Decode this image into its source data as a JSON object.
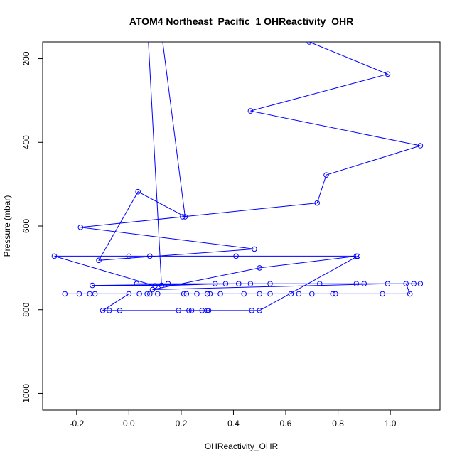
{
  "chart_data": {
    "type": "line",
    "title": "ATOM4 Northeast_Pacific_1 OHReactivity_OHR",
    "xlabel": "OHReactivity_OHR",
    "ylabel": "Pressure (mbar)",
    "xlim": [
      -0.33,
      1.19
    ],
    "ylim": [
      1040,
      160
    ],
    "y_reversed": true,
    "grid": false,
    "x_ticks": [
      -0.2,
      0.0,
      0.2,
      0.4,
      0.6,
      0.8,
      1.0
    ],
    "x_tick_labels": [
      "-0.2",
      "0.0",
      "0.2",
      "0.4",
      "0.6",
      "0.8",
      "1.0"
    ],
    "y_ticks": [
      200,
      400,
      600,
      800,
      1000
    ],
    "y_tick_labels": [
      "200",
      "400",
      "600",
      "800",
      "1000"
    ],
    "colors": {
      "series": "#0000ff"
    },
    "series": [
      {
        "x": [
          0.69,
          0.99,
          0.465,
          1.115,
          0.755,
          0.72,
          0.205,
          -0.185,
          0.48,
          -0.115,
          0.035,
          0.215,
          0.035,
          0.125,
          -0.14,
          0.465,
          1.115,
          0.87,
          0.37,
          0.1,
          -0.285,
          0.41,
          0.08,
          0.0,
          0.87,
          0.5,
          0.09,
          0.99,
          0.73,
          0.42,
          0.03,
          1.09,
          0.9,
          0.54,
          0.33,
          0.42,
          0.15,
          1.06,
          1.075,
          0.62,
          0.5,
          0.22,
          0.07,
          0.3,
          -0.245,
          0.79,
          0.97,
          0.65,
          0.44,
          0.31,
          0.04,
          -0.15,
          0.35,
          0.54,
          0.7,
          0.78,
          0.11,
          -0.19,
          0.3,
          0.08,
          0.21,
          -0.13,
          0.26,
          0.0,
          -0.1,
          0.24,
          0.3,
          -0.035,
          0.19,
          0.28,
          -0.075,
          0.305,
          0.23,
          0.47,
          0.5,
          0.875
        ],
        "y": [
          160,
          237,
          325,
          408,
          478,
          545,
          578,
          603,
          655,
          682,
          518,
          578,
          -300,
          742,
          742,
          738,
          738,
          738,
          738,
          743,
          672,
          672,
          672,
          672,
          672,
          700,
          752,
          738,
          738,
          738,
          738,
          738,
          738,
          738,
          738,
          738,
          738,
          738,
          762,
          762,
          762,
          762,
          762,
          762,
          762,
          762,
          762,
          762,
          762,
          762,
          762,
          762,
          762,
          762,
          762,
          762,
          762,
          762,
          762,
          762,
          762,
          762,
          762,
          762,
          802,
          802,
          802,
          802,
          802,
          802,
          802,
          802,
          802,
          802,
          802,
          672
        ]
      }
    ]
  }
}
